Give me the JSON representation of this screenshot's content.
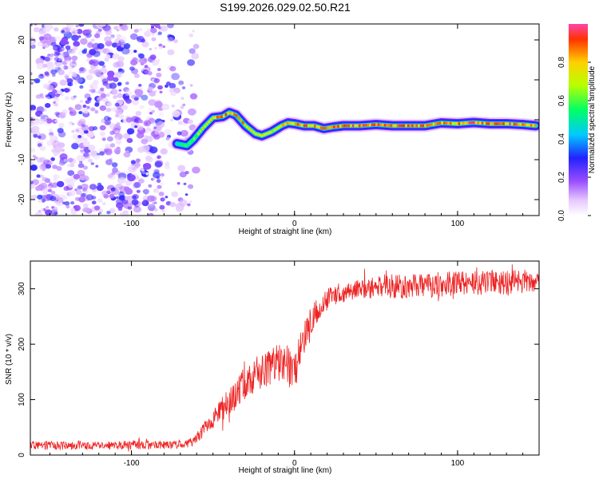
{
  "title": "S199.2026.029.02.50.R21",
  "chart_data": [
    {
      "type": "heatmap",
      "xlabel": "Height of straight line (km)",
      "ylabel": "Frequency (Hz)",
      "xlim": [
        -162,
        150
      ],
      "ylim": [
        -24,
        24
      ],
      "xticks": [
        -100,
        0,
        100
      ],
      "xtick_labels": [
        "-100",
        "0",
        "100"
      ],
      "yticks": [
        -20,
        -10,
        0,
        10,
        20
      ],
      "ytick_labels": [
        "-20",
        "-10",
        "0",
        "10",
        "20"
      ],
      "colorbar": {
        "label": "Normalized spectral amplitude",
        "range": [
          0,
          1
        ],
        "ticks": [
          0.0,
          0.2,
          0.4,
          0.6,
          0.8
        ],
        "tick_labels": [
          "0.0",
          "0.2",
          "0.4",
          "0.6",
          "0.8"
        ]
      },
      "noise_region_x": [
        -162,
        -60
      ],
      "ridge": {
        "x": [
          -72,
          -66,
          -62,
          -56,
          -50,
          -44,
          -40,
          -36,
          -30,
          -24,
          -20,
          -14,
          -8,
          -4,
          0,
          6,
          12,
          18,
          24,
          30,
          40,
          50,
          60,
          70,
          80,
          90,
          100,
          110,
          120,
          130,
          140,
          148
        ],
        "y": [
          -6,
          -6.5,
          -5,
          -2,
          0.5,
          0.8,
          1.8,
          1.2,
          -1.5,
          -3.5,
          -4,
          -3,
          -1.5,
          -0.8,
          -1,
          -1.5,
          -1.5,
          -2.2,
          -1.8,
          -1.5,
          -1.5,
          -1.2,
          -1.5,
          -1.5,
          -1.5,
          -0.8,
          -1,
          -0.7,
          -1,
          -1,
          -1.2,
          -1.5
        ],
        "amplitude": [
          0.55,
          0.6,
          0.65,
          0.8,
          0.85,
          0.9,
          0.95,
          0.9,
          0.85,
          0.8,
          0.75,
          0.75,
          0.8,
          0.85,
          0.85,
          0.9,
          0.85,
          0.9,
          0.9,
          0.95,
          0.95,
          0.9,
          0.95,
          0.9,
          0.95,
          0.85,
          0.9,
          0.95,
          0.9,
          0.95,
          0.9,
          0.9
        ]
      }
    },
    {
      "type": "line",
      "xlabel": "Height of straight line (km)",
      "ylabel": "SNR (10 * v/v)",
      "xlim": [
        -162,
        150
      ],
      "ylim": [
        0,
        350
      ],
      "xticks": [
        -100,
        0,
        100
      ],
      "xtick_labels": [
        "-100",
        "0",
        "100"
      ],
      "yticks": [
        0,
        100,
        200,
        300
      ],
      "ytick_labels": [
        "0",
        "100",
        "200",
        "300"
      ],
      "series": [
        {
          "name": "SNR",
          "color": "#ee2222",
          "x": [
            -162,
            -150,
            -140,
            -130,
            -120,
            -110,
            -100,
            -90,
            -80,
            -70,
            -64,
            -60,
            -56,
            -52,
            -48,
            -44,
            -40,
            -36,
            -32,
            -28,
            -24,
            -20,
            -16,
            -12,
            -8,
            -4,
            0,
            4,
            8,
            12,
            16,
            20,
            24,
            28,
            32,
            40,
            50,
            60,
            70,
            80,
            90,
            100,
            110,
            120,
            130,
            140,
            150
          ],
          "y": [
            18,
            17,
            17,
            18,
            17,
            18,
            18,
            18,
            19,
            19,
            22,
            30,
            45,
            60,
            70,
            85,
            95,
            110,
            125,
            135,
            145,
            150,
            158,
            165,
            165,
            160,
            140,
            195,
            230,
            255,
            270,
            280,
            288,
            293,
            296,
            300,
            302,
            305,
            305,
            305,
            308,
            310,
            310,
            312,
            312,
            313,
            312
          ],
          "noise_amplitude": [
            8,
            8,
            8,
            8,
            8,
            8,
            8,
            8,
            8,
            8,
            9,
            10,
            12,
            15,
            18,
            22,
            25,
            28,
            30,
            30,
            32,
            32,
            35,
            35,
            35,
            38,
            40,
            35,
            28,
            25,
            22,
            20,
            18,
            18,
            18,
            18,
            20,
            22,
            22,
            22,
            22,
            22,
            22,
            22,
            22,
            22,
            22
          ]
        }
      ]
    }
  ]
}
